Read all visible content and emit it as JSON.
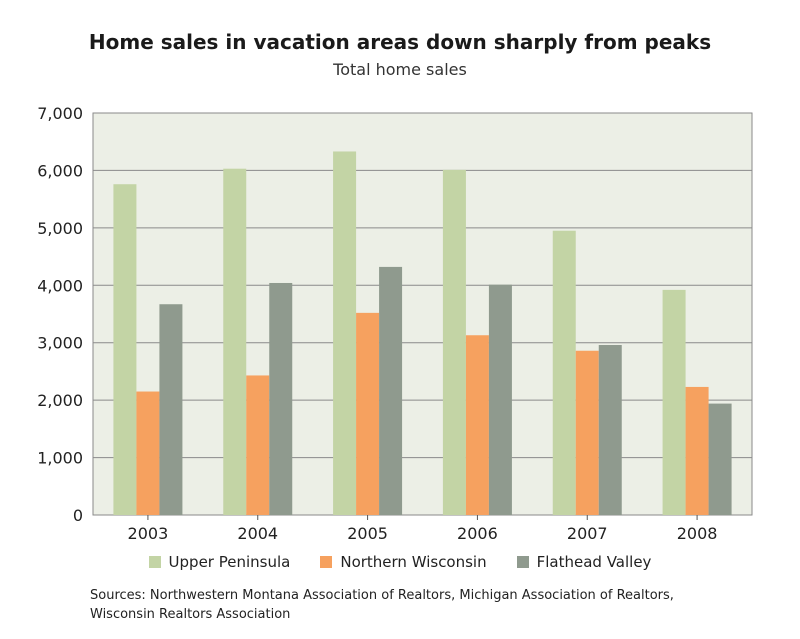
{
  "chart_data": {
    "type": "bar",
    "title": "Home sales in vacation areas down sharply from peaks",
    "subtitle": "Total home sales",
    "categories": [
      "2003",
      "2004",
      "2005",
      "2006",
      "2007",
      "2008"
    ],
    "series": [
      {
        "name": "Upper Peninsula",
        "color": "#c3d4a5",
        "values": [
          5760,
          6030,
          6330,
          6010,
          4950,
          3920
        ]
      },
      {
        "name": "Northern Wisconsin",
        "color": "#f6a15f",
        "values": [
          2150,
          2430,
          3520,
          3130,
          2860,
          2230
        ]
      },
      {
        "name": "Flathead Valley",
        "color": "#8f9a8e",
        "values": [
          3670,
          4040,
          4320,
          4010,
          2960,
          1940
        ]
      }
    ],
    "ylim": [
      0,
      7000
    ],
    "yticks": [
      0,
      1000,
      2000,
      3000,
      4000,
      5000,
      6000,
      7000
    ],
    "ytick_labels": [
      "0",
      "1,000",
      "2,000",
      "3,000",
      "4,000",
      "5,000",
      "6,000",
      "7,000"
    ],
    "grid": true,
    "legend_position": "bottom",
    "plot_background": "#ecefe6"
  },
  "sources": "Sources: Northwestern Montana Association of Realtors, Michigan Association of Realtors, Wisconsin Realtors Association"
}
